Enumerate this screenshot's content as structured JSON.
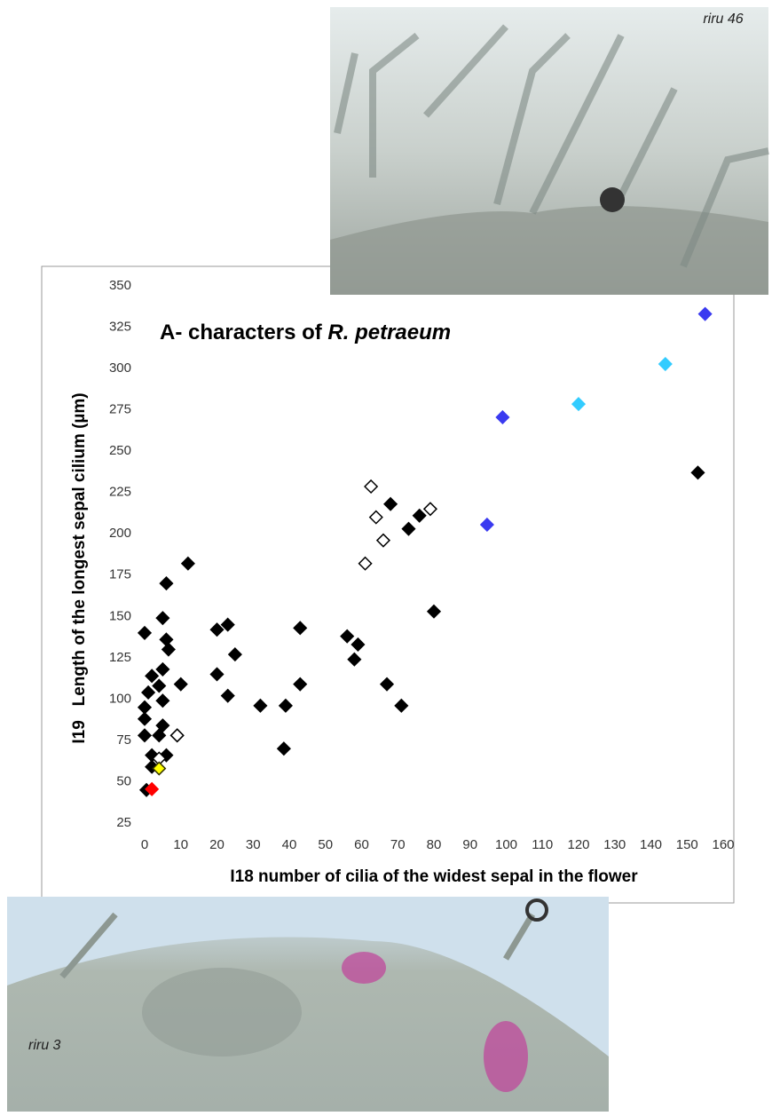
{
  "chart_data": {
    "type": "scatter",
    "title": {
      "text": "A- characters of",
      "italic": "R. petraeum"
    },
    "x_label": "I18 number of cilia of the widest sepal in the flower",
    "y_label": "I19   Length of the longest sepal cilium (µm)",
    "xlim": [
      0,
      160
    ],
    "xticks": [
      0,
      10,
      20,
      30,
      40,
      50,
      60,
      70,
      80,
      90,
      100,
      110,
      120,
      130,
      140,
      150,
      160
    ],
    "ylim": [
      25,
      350
    ],
    "yticks": [
      25,
      50,
      75,
      100,
      125,
      150,
      175,
      200,
      225,
      250,
      275,
      300,
      325,
      350
    ],
    "grid": false,
    "marker": "diamond",
    "series": [
      {
        "color": "#000000",
        "edgecolor": "#000000",
        "x": [
          0,
          5,
          6,
          12,
          6,
          6.6,
          5,
          2,
          4,
          10,
          1,
          5,
          0,
          0,
          0,
          4,
          9,
          5,
          2,
          6,
          2,
          0.5,
          20,
          23,
          25,
          20,
          23,
          32,
          39,
          38.5,
          43,
          43,
          56,
          59,
          58,
          67,
          71,
          68,
          73,
          76,
          80,
          153
        ],
        "values": [
          140,
          149,
          170,
          182,
          136,
          130,
          118,
          114,
          108,
          109,
          104,
          99,
          95,
          88,
          78,
          78,
          78,
          84,
          66,
          66,
          59,
          45,
          142,
          145,
          127,
          115,
          102,
          96,
          96,
          70,
          143,
          109,
          138,
          133,
          124,
          109,
          96,
          218,
          203,
          211,
          153,
          237
        ]
      },
      {
        "color": "#ffffff",
        "edgecolor": "#000000",
        "x": [
          62.6,
          64,
          66,
          61,
          79,
          9,
          4
        ],
        "values": [
          228.6,
          210,
          196,
          182,
          215,
          78,
          64
        ]
      },
      {
        "color": "#3a3af0",
        "edgecolor": "#3a3af0",
        "x": [
          94.7,
          99,
          155
        ],
        "values": [
          205.5,
          270.5,
          333
        ]
      },
      {
        "color": "#33ccff",
        "edgecolor": "#33ccff",
        "x": [
          120,
          144
        ],
        "values": [
          278.5,
          302.7
        ]
      },
      {
        "color": "#ffff00",
        "edgecolor": "#333300",
        "x": [
          4
        ],
        "values": [
          58
        ]
      },
      {
        "color": "#ff0000",
        "edgecolor": "#ff0000",
        "x": [
          2
        ],
        "values": [
          45.5
        ]
      }
    ]
  },
  "photos": {
    "top_label": "riru 46",
    "bottom_label": "riru 3"
  }
}
